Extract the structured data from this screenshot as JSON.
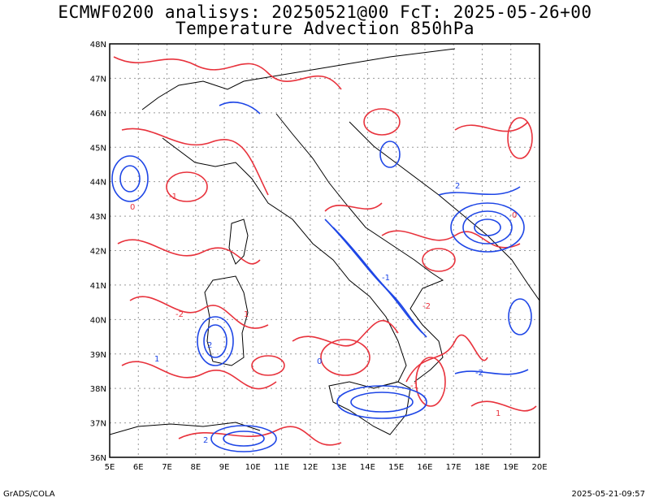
{
  "title": {
    "line1": "ECMWF0200 analisys: 20250521@00 FcT: 2025-05-26+00",
    "line2": "Temperature Advection 850hPa"
  },
  "footer": {
    "left": "GrADS/COLA",
    "right": "2025-05-21-09:57"
  },
  "map": {
    "lon_labels": [
      "5E",
      "6E",
      "7E",
      "8E",
      "9E",
      "10E",
      "11E",
      "12E",
      "13E",
      "14E",
      "15E",
      "16E",
      "17E",
      "18E",
      "19E",
      "20E"
    ],
    "lat_labels": [
      "36N",
      "37N",
      "38N",
      "39N",
      "40N",
      "41N",
      "42N",
      "43N",
      "44N",
      "45N",
      "46N",
      "47N",
      "48N"
    ],
    "lon_range": [
      5,
      20
    ],
    "lat_range": [
      36,
      48
    ],
    "colors": {
      "warm_advection": "#e8323c",
      "cold_advection": "#1e46e6",
      "coastline": "#000000",
      "grid": "#999999"
    },
    "contour_labels": [
      "-1",
      "-2",
      "1",
      "2",
      "0"
    ]
  }
}
